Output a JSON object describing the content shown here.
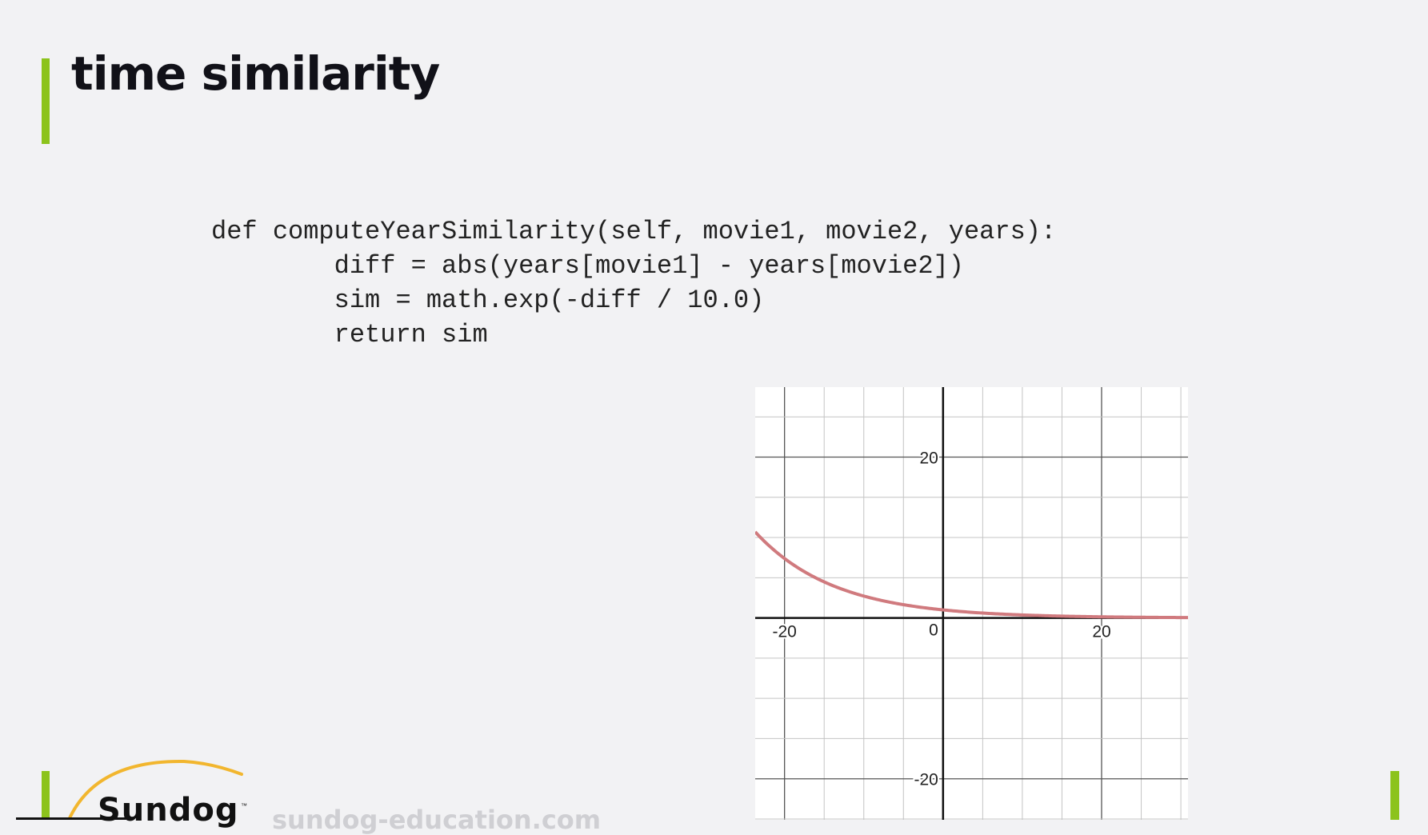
{
  "slide": {
    "title": "time similarity",
    "code_lines": [
      "def computeYearSimilarity(self, movie1, movie2, years):",
      "        diff = abs(years[movie1] - years[movie2])",
      "        sim = math.exp(-diff / 10.0)",
      "        return sim"
    ]
  },
  "footer": {
    "logo_text": "Sundog",
    "trademark": "™",
    "website": "sundog-education.com"
  },
  "colors": {
    "accent": "#8cc31c",
    "curve": "#d07a7e",
    "background": "#f2f2f4"
  },
  "chart_data": {
    "type": "line",
    "xlim": [
      -23.7,
      30.9
    ],
    "ylim": [
      -25.1,
      28.7
    ],
    "grid": true,
    "tick_step": 5,
    "x_tick_labels": [
      "-20",
      "20"
    ],
    "y_tick_labels": [
      "20",
      "-20"
    ],
    "origin_label": "0",
    "series": [
      {
        "function": "exp(-x / 10.0)",
        "x": [
          -23.7,
          -20,
          -15,
          -10,
          -5,
          0,
          5,
          10,
          15,
          20,
          25,
          30.9
        ],
        "y": [
          10.7,
          7.39,
          4.48,
          2.72,
          1.65,
          1.0,
          0.61,
          0.37,
          0.22,
          0.14,
          0.08,
          0.05
        ]
      }
    ]
  }
}
